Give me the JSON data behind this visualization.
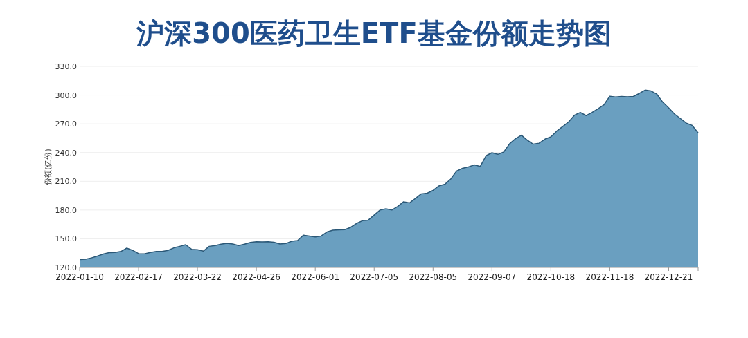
{
  "chart_data": {
    "type": "area",
    "title": "沪深300医药卫生ETF基金份额走势图",
    "ylabel": "份额(亿份)",
    "categories": [
      "2022-01-10",
      null,
      null,
      null,
      null,
      null,
      null,
      null,
      null,
      null,
      "2022-02-17",
      null,
      null,
      null,
      null,
      null,
      null,
      null,
      null,
      null,
      "2022-03-22",
      null,
      null,
      null,
      null,
      null,
      null,
      null,
      null,
      null,
      "2022-04-26",
      null,
      null,
      null,
      null,
      null,
      null,
      null,
      null,
      null,
      "2022-06-01",
      null,
      null,
      null,
      null,
      null,
      null,
      null,
      null,
      null,
      "2022-07-05",
      null,
      null,
      null,
      null,
      null,
      null,
      null,
      null,
      null,
      "2022-08-05",
      null,
      null,
      null,
      null,
      null,
      null,
      null,
      null,
      null,
      "2022-09-07",
      null,
      null,
      null,
      null,
      null,
      null,
      null,
      null,
      null,
      "2022-10-18",
      null,
      null,
      null,
      null,
      null,
      null,
      null,
      null,
      null,
      "2022-11-18",
      null,
      null,
      null,
      null,
      null,
      null,
      null,
      null,
      null,
      "2022-12-21",
      null,
      null,
      null,
      null,
      null
    ],
    "series": [
      {
        "color": "#6a9fc0",
        "values": [
          128.3,
          128.6,
          130,
          131.9,
          134,
          135.5,
          135.7,
          136.7,
          140.2,
          137.9,
          134.5,
          134.3,
          135.7,
          136.7,
          136.7,
          137.9,
          140.5,
          142.1,
          143.8,
          139,
          138.6,
          137.1,
          142.1,
          142.9,
          144.3,
          145.2,
          144.5,
          142.9,
          144.3,
          146.2,
          146.9,
          146.7,
          146.9,
          146.4,
          144.5,
          145,
          147.4,
          148.1,
          153.8,
          152.9,
          151.9,
          152.9,
          157.1,
          159,
          159.3,
          159.5,
          161.9,
          166,
          168.8,
          169.5,
          174.8,
          180,
          181.4,
          180,
          183.8,
          188.6,
          187.4,
          192.1,
          196.9,
          197.6,
          200.5,
          205.2,
          206.9,
          212.4,
          220.7,
          223.6,
          225,
          227.1,
          225.5,
          236.7,
          239.8,
          238.1,
          240.5,
          249.3,
          254.5,
          258.1,
          252.9,
          248.8,
          249.8,
          254,
          256.4,
          262.4,
          267.1,
          271.9,
          279,
          281.9,
          278.6,
          281.9,
          285.7,
          289.8,
          298.8,
          298.1,
          298.6,
          298.3,
          298.6,
          301.7,
          305.2,
          304.3,
          301,
          292.6,
          286.7,
          280.2,
          275.5,
          270.7,
          268.3,
          260.5
        ]
      }
    ],
    "ylim": [
      120,
      330
    ],
    "yticks": [
      {
        "value": 120,
        "label": "120.0"
      },
      {
        "value": 150,
        "label": "150.0"
      },
      {
        "value": 180,
        "label": "180.0"
      },
      {
        "value": 210,
        "label": "210.0"
      },
      {
        "value": 240,
        "label": "240.0"
      },
      {
        "value": 270,
        "label": "270.0"
      },
      {
        "value": 300,
        "label": "300.0"
      },
      {
        "value": 330,
        "label": "330.0"
      }
    ],
    "grid": "y"
  }
}
